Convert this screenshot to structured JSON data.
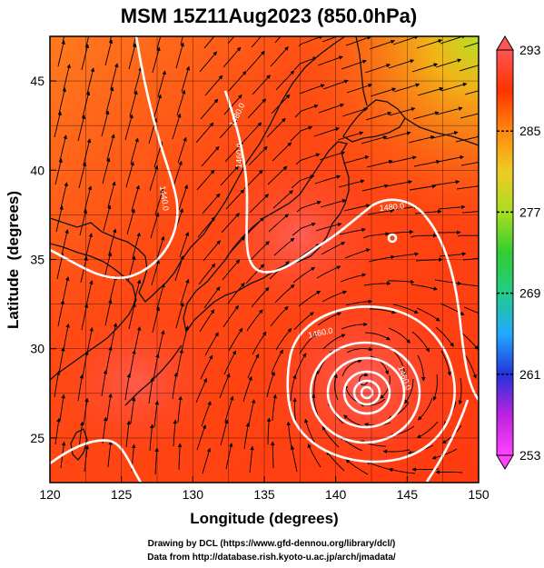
{
  "title": "MSM 15Z11Aug2023 (850.0hPa)",
  "credits": [
    "Drawing by DCL (https://www.gfd-dennou.org/library/dcl/)",
    "Data from http://database.rish.kyoto-u.ac.jp/arch/jmadata/"
  ],
  "chart_data": {
    "type": "map",
    "xlabel": "Longitude (degrees)",
    "ylabel": "Latitude  (degrees)",
    "xlim": [
      120,
      150
    ],
    "ylim": [
      22.5,
      47.5
    ],
    "xticks": [
      120,
      125,
      130,
      135,
      140,
      145,
      150
    ],
    "yticks": [
      25,
      30,
      35,
      40,
      45
    ],
    "grid": true,
    "colorbar": {
      "range": [
        253,
        293
      ],
      "tick_labels": [
        293,
        285,
        277,
        269,
        261,
        253
      ],
      "dashed_ticks": [
        285,
        277,
        269,
        261
      ],
      "stops": [
        "#ff44ff",
        "#bb22dd",
        "#2233dd",
        "#22aaff",
        "#22cc88",
        "#33cc33",
        "#aadd22",
        "#eecc22",
        "#ff8811",
        "#ff3300",
        "#ff5555"
      ]
    },
    "contour_labels": [
      "1440.0",
      "1460.0",
      "1480.0",
      "1460.0",
      "1460.0",
      "1480.0"
    ],
    "typhoon_center": {
      "lon": 142.0,
      "lat": 28.2
    },
    "colors": {
      "field": "#ff3b1a",
      "contour": "#ffffff",
      "streamline": "#000000"
    }
  }
}
